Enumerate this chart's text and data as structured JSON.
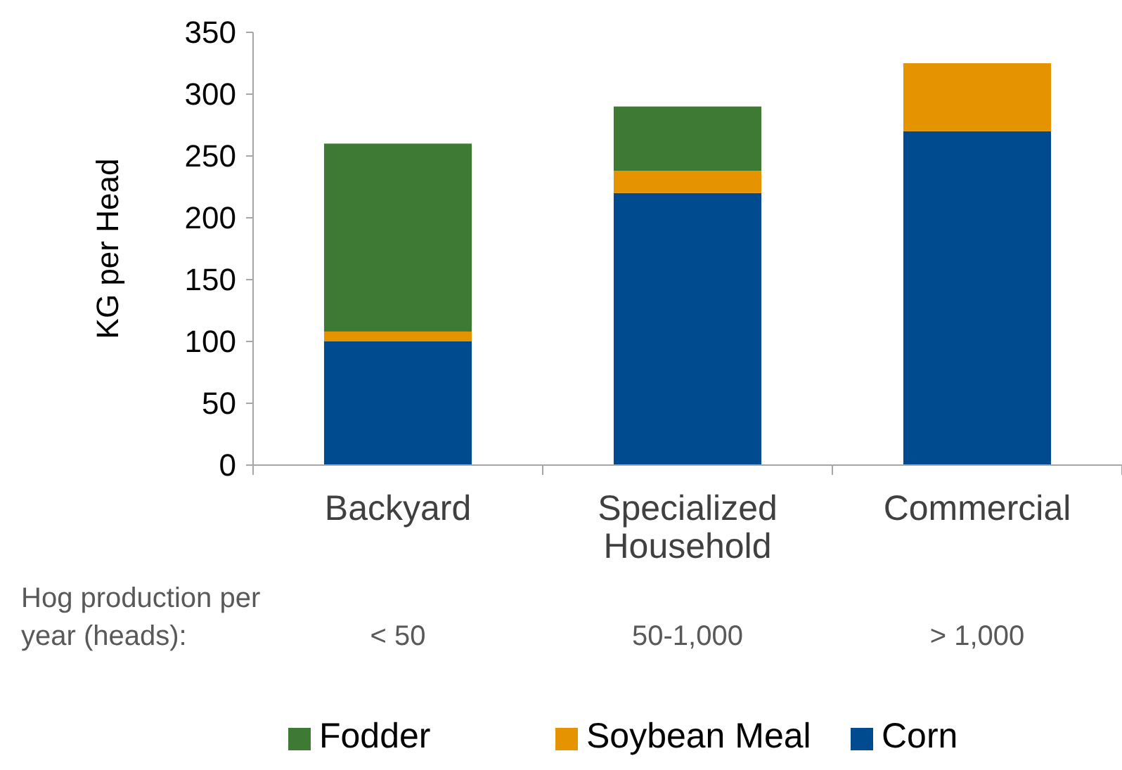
{
  "chart_data": {
    "type": "bar",
    "stacked": true,
    "ylabel": "KG per Head",
    "categories": [
      "Backyard",
      "Specialized Household",
      "Commercial"
    ],
    "series": [
      {
        "name": "Corn",
        "color": "#004a8f",
        "values": [
          100,
          220,
          270
        ]
      },
      {
        "name": "Soybean Meal",
        "color": "#e59400",
        "values": [
          8,
          18,
          55
        ]
      },
      {
        "name": "Fodder",
        "color": "#3f7a35",
        "values": [
          152,
          52,
          0
        ]
      }
    ],
    "ylim": [
      0,
      350
    ],
    "yticks": [
      0,
      50,
      100,
      150,
      200,
      250,
      300,
      350
    ],
    "grid": false,
    "legend": "bottom",
    "annotations": [
      "Hog production per year (heads):",
      "< 50",
      "50-1,000",
      "> 1,000"
    ]
  }
}
